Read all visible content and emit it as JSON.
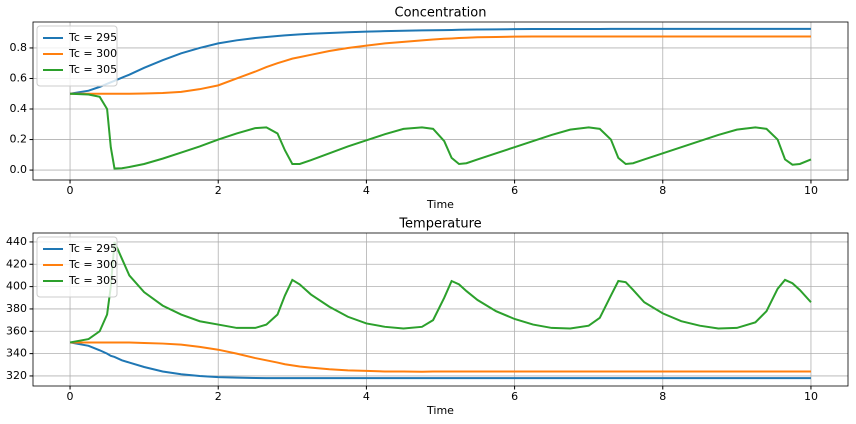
{
  "chart_data": [
    {
      "type": "line",
      "title": "Concentration",
      "xlabel": "Time",
      "x": [
        0,
        0.25,
        0.4,
        0.5,
        0.55,
        0.6,
        0.7,
        0.8,
        1,
        1.25,
        1.5,
        1.75,
        2,
        2.25,
        2.5,
        2.65,
        2.8,
        2.9,
        3,
        3.1,
        3.25,
        3.5,
        3.75,
        4,
        4.25,
        4.5,
        4.75,
        4.9,
        5.05,
        5.15,
        5.25,
        5.35,
        5.5,
        5.75,
        6,
        6.25,
        6.5,
        6.75,
        7,
        7.15,
        7.3,
        7.4,
        7.5,
        7.6,
        7.75,
        8,
        8.25,
        8.5,
        8.75,
        9,
        9.25,
        9.4,
        9.55,
        9.65,
        9.75,
        9.85,
        10
      ],
      "series": [
        {
          "name": "Tc = 295",
          "color": "#1f77b4",
          "values": [
            0.5,
            0.52,
            0.545,
            0.565,
            0.575,
            0.585,
            0.605,
            0.625,
            0.67,
            0.72,
            0.765,
            0.8,
            0.83,
            0.85,
            0.865,
            0.872,
            0.878,
            0.882,
            0.886,
            0.889,
            0.893,
            0.898,
            0.903,
            0.907,
            0.91,
            0.913,
            0.915,
            0.916,
            0.917,
            0.918,
            0.919,
            0.92,
            0.921,
            0.922,
            0.923,
            0.924,
            0.924,
            0.924,
            0.924,
            0.924,
            0.925,
            0.925,
            0.925,
            0.925,
            0.925,
            0.925,
            0.925,
            0.925,
            0.925,
            0.925,
            0.925,
            0.925,
            0.925,
            0.925,
            0.925,
            0.925,
            0.925
          ]
        },
        {
          "name": "Tc = 300",
          "color": "#ff7f0e",
          "values": [
            0.5,
            0.5,
            0.5,
            0.5,
            0.5,
            0.5,
            0.5,
            0.5,
            0.502,
            0.505,
            0.512,
            0.53,
            0.555,
            0.6,
            0.645,
            0.675,
            0.7,
            0.715,
            0.73,
            0.74,
            0.755,
            0.78,
            0.8,
            0.815,
            0.83,
            0.84,
            0.85,
            0.855,
            0.86,
            0.862,
            0.865,
            0.867,
            0.87,
            0.872,
            0.874,
            0.875,
            0.875,
            0.875,
            0.875,
            0.875,
            0.875,
            0.875,
            0.875,
            0.875,
            0.875,
            0.875,
            0.875,
            0.875,
            0.875,
            0.875,
            0.875,
            0.875,
            0.875,
            0.875,
            0.875,
            0.875,
            0.875
          ]
        },
        {
          "name": "Tc = 305",
          "color": "#2ca02c",
          "values": [
            0.5,
            0.495,
            0.48,
            0.4,
            0.15,
            0.01,
            0.012,
            0.02,
            0.04,
            0.075,
            0.115,
            0.155,
            0.2,
            0.24,
            0.275,
            0.28,
            0.24,
            0.13,
            0.04,
            0.04,
            0.065,
            0.11,
            0.155,
            0.195,
            0.235,
            0.27,
            0.28,
            0.27,
            0.19,
            0.08,
            0.04,
            0.045,
            0.07,
            0.11,
            0.15,
            0.19,
            0.23,
            0.265,
            0.28,
            0.27,
            0.2,
            0.08,
            0.04,
            0.045,
            0.07,
            0.11,
            0.15,
            0.19,
            0.23,
            0.265,
            0.28,
            0.27,
            0.2,
            0.07,
            0.035,
            0.04,
            0.07
          ]
        }
      ],
      "xlim": [
        -0.5,
        10.5
      ],
      "xticks": [
        0,
        2,
        4,
        6,
        8,
        10
      ],
      "ylim": [
        -0.065,
        0.97
      ],
      "yticks": [
        {
          "value": 0,
          "label": "0.0"
        },
        0.2,
        0.4,
        0.6,
        0.8
      ],
      "grid": true,
      "legend": "upper-left"
    },
    {
      "type": "line",
      "title": "Temperature",
      "xlabel": "Time",
      "x": [
        0,
        0.25,
        0.4,
        0.5,
        0.55,
        0.6,
        0.7,
        0.8,
        1,
        1.25,
        1.5,
        1.75,
        2,
        2.25,
        2.5,
        2.65,
        2.8,
        2.9,
        3,
        3.1,
        3.25,
        3.5,
        3.75,
        4,
        4.25,
        4.5,
        4.75,
        4.9,
        5.05,
        5.15,
        5.25,
        5.35,
        5.5,
        5.75,
        6,
        6.25,
        6.5,
        6.75,
        7,
        7.15,
        7.3,
        7.4,
        7.5,
        7.6,
        7.75,
        8,
        8.25,
        8.5,
        8.75,
        9,
        9.25,
        9.4,
        9.55,
        9.65,
        9.75,
        9.85,
        10
      ],
      "series": [
        {
          "name": "Tc = 295",
          "color": "#1f77b4",
          "values": [
            350,
            347,
            343,
            340,
            338,
            337,
            334,
            332,
            328,
            324,
            321.5,
            320,
            319,
            318.5,
            318.2,
            318,
            318,
            318,
            318,
            318,
            318,
            318,
            318,
            318,
            318,
            318,
            318,
            318,
            318,
            318,
            318,
            318,
            318,
            318,
            318,
            318,
            318,
            318,
            318,
            318,
            318,
            318,
            318,
            318,
            318,
            318,
            318,
            318,
            318,
            318,
            318,
            318,
            318,
            318,
            318,
            318,
            318
          ]
        },
        {
          "name": "Tc = 300",
          "color": "#ff7f0e",
          "values": [
            350,
            350,
            350,
            350,
            350,
            350,
            350,
            350,
            349.5,
            349,
            348,
            346,
            343.5,
            340,
            336,
            334,
            332,
            330.5,
            329.5,
            328.5,
            327.5,
            326,
            325,
            324.5,
            324,
            324,
            323.8,
            324,
            324,
            324,
            324,
            324,
            324,
            324,
            324,
            324,
            324,
            324,
            324,
            324,
            324,
            324,
            324,
            324,
            324,
            324,
            324,
            324,
            324,
            324,
            324,
            324,
            324,
            324,
            324,
            324,
            324
          ]
        },
        {
          "name": "Tc = 305",
          "color": "#2ca02c",
          "values": [
            350,
            353,
            360,
            375,
            400,
            440,
            425,
            410,
            395,
            383,
            375,
            369,
            366,
            363,
            363,
            366,
            375,
            392,
            406,
            402,
            393,
            382,
            373,
            367,
            364,
            362.5,
            364,
            370,
            390,
            405,
            402,
            396,
            388,
            378,
            371,
            366,
            363,
            362.5,
            365,
            372,
            392,
            405,
            404,
            397,
            386,
            376,
            369,
            365,
            362.5,
            363,
            368,
            378,
            398,
            406,
            403,
            397,
            386
          ]
        }
      ],
      "xlim": [
        -0.5,
        10.5
      ],
      "xticks": [
        0,
        2,
        4,
        6,
        8,
        10
      ],
      "ylim": [
        311,
        448
      ],
      "yticks": [
        320,
        340,
        360,
        380,
        400,
        420,
        440
      ],
      "grid": true,
      "legend": "upper-left"
    }
  ]
}
